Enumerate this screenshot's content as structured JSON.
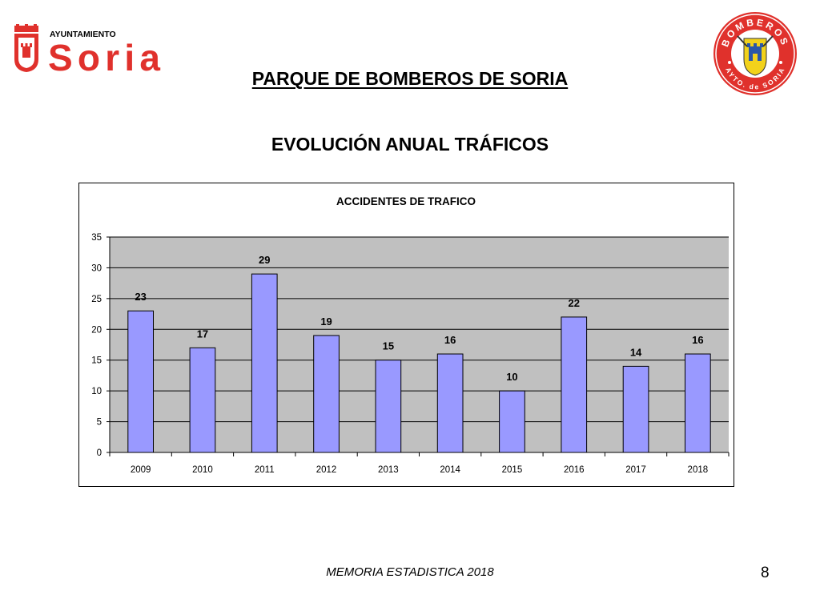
{
  "header": {
    "logo_left": {
      "top_text": "AYUNTAMIENTO",
      "main_text": "Soria",
      "color": "#e0312c"
    },
    "logo_right": {
      "top_text": "BOMBEROS",
      "bottom_text": "AYTO. de SORIA",
      "color": "#e0312c"
    },
    "title": "PARQUE DE BOMBEROS DE SORIA",
    "subtitle": "EVOLUCIÓN ANUAL TRÁFICOS"
  },
  "chart_data": {
    "type": "bar",
    "title": "ACCIDENTES DE TRAFICO",
    "xlabel": "",
    "ylabel": "",
    "categories": [
      "2009",
      "2010",
      "2011",
      "2012",
      "2013",
      "2014",
      "2015",
      "2016",
      "2017",
      "2018"
    ],
    "values": [
      23,
      17,
      29,
      19,
      15,
      16,
      10,
      22,
      14,
      16
    ],
    "ylim": [
      0,
      35
    ],
    "yticks": [
      0,
      5,
      10,
      15,
      20,
      25,
      30,
      35
    ],
    "grid": true,
    "legend": "none",
    "data_labels": true,
    "colors": {
      "bar": "#9999ff",
      "plot_bg": "#c0c0c0",
      "border": "#000000"
    }
  },
  "footer": {
    "text": "MEMORIA ESTADISTICA 2018",
    "page_number": "8"
  }
}
